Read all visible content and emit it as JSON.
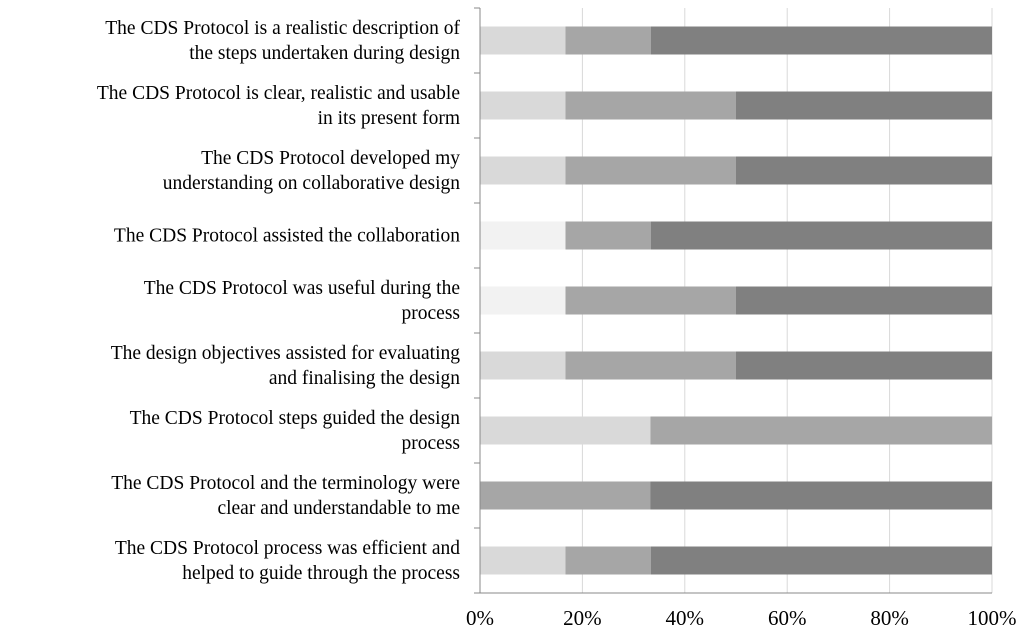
{
  "chart_data": {
    "type": "stacked-bar",
    "orientation": "horizontal",
    "categories": [
      "The CDS Protocol is a realistic description of\nthe steps undertaken during design",
      "The CDS Protocol is clear, realistic and usable\nin its present form",
      "The CDS Protocol developed my\nunderstanding on collaborative design",
      "The CDS Protocol assisted the collaboration",
      "The CDS Protocol was useful during the\nprocess",
      "The design objectives assisted for evaluating\nand finalising the design",
      "The CDS Protocol steps guided the design\nprocess",
      "The CDS Protocol and the terminology were\nclear and understandable to me",
      "The CDS Protocol process was efficient and\nhelped to guide through the process"
    ],
    "series": [
      {
        "color": "#f2f2f2",
        "values": [
          0,
          0,
          0,
          16.7,
          16.7,
          0,
          0,
          0,
          0
        ]
      },
      {
        "color": "#d9d9d9",
        "values": [
          16.7,
          16.7,
          16.7,
          0,
          0,
          16.7,
          33.3,
          0,
          16.7
        ]
      },
      {
        "color": "#a6a6a6",
        "values": [
          16.7,
          33.3,
          33.3,
          16.7,
          33.3,
          33.3,
          66.7,
          33.3,
          16.7
        ]
      },
      {
        "color": "#808080",
        "values": [
          66.6,
          50,
          50,
          66.6,
          50,
          50,
          0,
          66.7,
          66.6
        ]
      }
    ],
    "xlim": [
      0,
      100
    ],
    "xticks": [
      {
        "value": 0,
        "label": "0%"
      },
      {
        "value": 20,
        "label": "20%"
      },
      {
        "value": 40,
        "label": "40%"
      },
      {
        "value": 60,
        "label": "60%"
      },
      {
        "value": 80,
        "label": "80%"
      },
      {
        "value": 100,
        "label": "100%"
      }
    ],
    "grid": true
  }
}
